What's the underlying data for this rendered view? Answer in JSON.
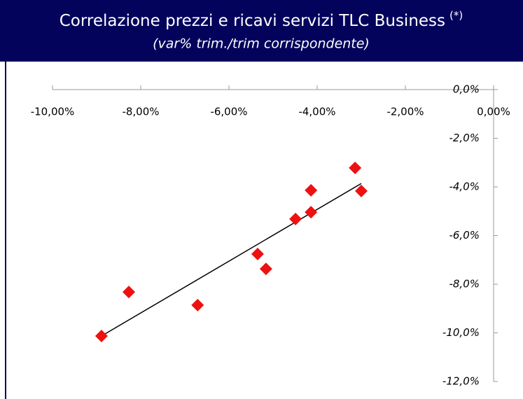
{
  "chart_data": {
    "type": "scatter",
    "title": "Correlazione prezzi e ricavi servizi TLC Business",
    "title_note": "(*)",
    "subtitle": "(var% trim./trim corrispondente)",
    "header_color": "#03035c",
    "color": "#ee1111",
    "trendline_color": "#000000",
    "series": [
      {
        "x": [
          -8.89,
          -8.27,
          -6.71,
          -5.35,
          -5.16,
          -4.49,
          -4.14,
          -4.14,
          -3.14,
          -3.0
        ],
        "values": [
          -10.13,
          -8.32,
          -8.86,
          -6.76,
          -7.37,
          -5.32,
          -5.04,
          -4.14,
          -3.22,
          -4.17
        ]
      }
    ],
    "trendline": {
      "x": [
        -8.89,
        -3.0
      ],
      "values": [
        -10.13,
        -3.86
      ]
    },
    "xlim": [
      -10,
      0
    ],
    "xticks": [
      {
        "value": -10,
        "label": "-10,00%"
      },
      {
        "value": -8,
        "label": "-8,00%"
      },
      {
        "value": -6,
        "label": "-6,00%"
      },
      {
        "value": -4,
        "label": "-4,00%"
      },
      {
        "value": -2,
        "label": "-2,00%"
      },
      {
        "value": 0,
        "label": "0,00%"
      }
    ],
    "ylim": [
      -12,
      0
    ],
    "yticks": [
      {
        "value": 0,
        "label": "0,0%"
      },
      {
        "value": -2,
        "label": "-2,0%"
      },
      {
        "value": -4,
        "label": "-4,0%"
      },
      {
        "value": -6,
        "label": "-6,0%"
      },
      {
        "value": -8,
        "label": "-8,0%"
      },
      {
        "value": -10,
        "label": "-10,0%"
      },
      {
        "value": -12,
        "label": "-12,0%"
      }
    ],
    "grid": false
  }
}
